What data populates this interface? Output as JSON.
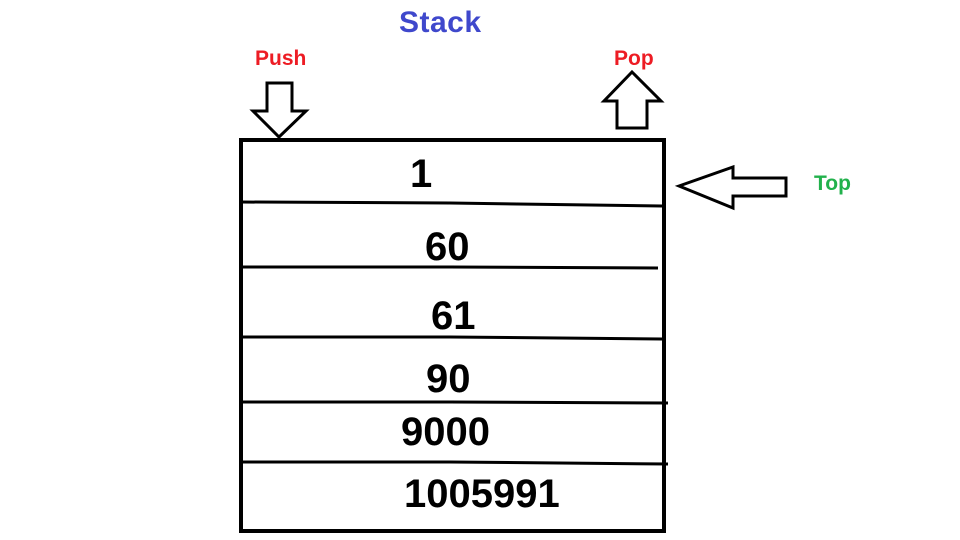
{
  "diagram": {
    "title": "Stack",
    "push_label": "Push",
    "pop_label": "Pop",
    "top_label": "Top",
    "stack_values": [
      "1",
      "60",
      "61",
      "90",
      "9000",
      "1005991"
    ]
  },
  "colors": {
    "title": "#3f48cc",
    "push_pop": "#ed1c24",
    "top": "#22b14c",
    "ink": "#000000",
    "background": "#ffffff"
  }
}
